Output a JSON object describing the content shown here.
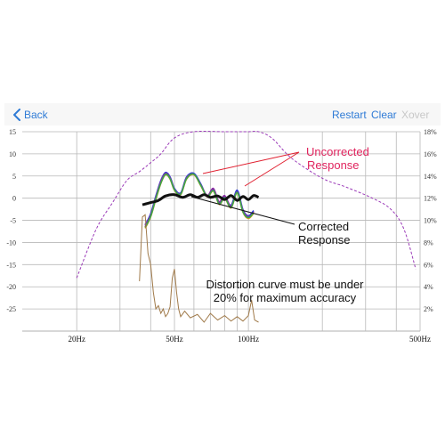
{
  "navbar": {
    "back_label": "Back",
    "restart_label": "Restart",
    "clear_label": "Clear",
    "xover_label": "Xover"
  },
  "annotations": {
    "uncorrected_line1": "Uncorrected",
    "uncorrected_line2": "Response",
    "corrected_line1": "Corrected",
    "corrected_line2": "Response",
    "distortion_line1": "Distortion curve must be under",
    "distortion_line2": "20% for maximum accuracy"
  },
  "colors": {
    "accent": "#2f7bd6",
    "uncorrected_label": "#e0245e",
    "target": "#9b3bb8",
    "distortion": "#a07a4a",
    "corrected": "#111111"
  },
  "chart_data": {
    "type": "line",
    "x_scale": "log",
    "xlim": [
      12,
      500
    ],
    "ylim_left": [
      -30,
      15
    ],
    "ylim_right": [
      0,
      18
    ],
    "y_ticks_left": [
      "15",
      "10",
      "5",
      "0",
      "-5",
      "-10",
      "-15",
      "-20",
      "-25"
    ],
    "y_ticks_left_values": [
      15,
      10,
      5,
      0,
      -5,
      -10,
      -15,
      -20,
      -25
    ],
    "y_ticks_right": [
      "18%",
      "16%",
      "14%",
      "12%",
      "10%",
      "8%",
      "6%",
      "4%",
      "2%"
    ],
    "y_ticks_right_values": [
      18,
      16,
      14,
      12,
      10,
      8,
      6,
      4,
      2
    ],
    "x_ticks": [
      "20Hz",
      "50Hz",
      "100Hz",
      "500Hz"
    ],
    "x_ticks_values": [
      20,
      50,
      100,
      500
    ],
    "grid_x": [
      20,
      30,
      40,
      50,
      60,
      70,
      80,
      90,
      100,
      200,
      300,
      400,
      500
    ],
    "grid": true,
    "series": [
      {
        "role": "target",
        "axis": "left",
        "style": "dashed",
        "color": "#9b3bb8",
        "x": [
          20,
          24,
          28,
          32,
          36,
          40,
          44,
          50,
          60,
          80,
          100,
          110,
          125,
          150,
          200,
          250,
          320,
          380,
          430,
          480
        ],
        "y": [
          -18,
          -7,
          -1,
          4,
          6,
          8,
          10,
          13.6,
          15,
          15,
          15,
          15,
          13.5,
          9,
          4.5,
          2.5,
          0,
          -2.5,
          -7,
          -16
        ]
      },
      {
        "role": "uncorrected-red",
        "axis": "left",
        "color": "#e02030",
        "x": [
          38,
          40,
          42,
          44,
          46,
          48,
          50,
          53,
          56,
          60,
          64,
          68,
          72,
          76,
          80,
          85,
          90,
          95,
          100,
          105
        ],
        "y": [
          -6.5,
          -4,
          0,
          3.5,
          5.5,
          4.5,
          2,
          1,
          4.5,
          5.5,
          3,
          0.5,
          2,
          -1,
          0.5,
          -2,
          1.5,
          -3,
          -4.5,
          -3
        ]
      },
      {
        "role": "uncorrected-blue",
        "axis": "left",
        "color": "#2a3ad8",
        "x": [
          38,
          40,
          42,
          44,
          46,
          48,
          50,
          53,
          56,
          60,
          64,
          68,
          72,
          76,
          80,
          85,
          90,
          95,
          100,
          105
        ],
        "y": [
          -6,
          -3.5,
          0.5,
          4,
          5.8,
          4.8,
          2.2,
          1.2,
          4.8,
          5.6,
          3.2,
          0.4,
          1.8,
          -1.2,
          0.2,
          -1.6,
          1.8,
          -2.6,
          -4,
          -2.8
        ]
      },
      {
        "role": "uncorrected-purple",
        "axis": "left",
        "color": "#8a2aa8",
        "x": [
          38,
          40,
          42,
          44,
          46,
          48,
          50,
          53,
          56,
          60,
          64,
          68,
          72,
          76,
          80,
          85,
          90,
          95,
          100,
          105
        ],
        "y": [
          -6.2,
          -3.8,
          0.2,
          3.8,
          5.6,
          4.6,
          2,
          1,
          4.6,
          5.4,
          3,
          0.6,
          2.2,
          -0.8,
          0.6,
          -1.8,
          1.4,
          -2.8,
          -4.2,
          -3.2
        ]
      },
      {
        "role": "uncorrected-orange",
        "axis": "left",
        "color": "#e89020",
        "x": [
          38,
          40,
          42,
          44,
          46,
          48,
          50,
          53,
          56,
          60,
          64,
          68,
          72,
          76,
          80,
          85,
          90,
          95,
          100,
          105
        ],
        "y": [
          -6.8,
          -4.2,
          -0.3,
          3.3,
          5.3,
          4.3,
          1.8,
          0.8,
          4.3,
          5.3,
          2.8,
          0.3,
          1.6,
          -1.4,
          0,
          -2.2,
          1.2,
          -3.2,
          -4.6,
          -3.4
        ]
      },
      {
        "role": "uncorrected-green",
        "axis": "left",
        "color": "#39a84a",
        "x": [
          38,
          40,
          42,
          44,
          46,
          48,
          50,
          53,
          56,
          60,
          64,
          68,
          72,
          76,
          80,
          85,
          90,
          95,
          100,
          105
        ],
        "y": [
          -6.6,
          -4.1,
          -0.1,
          3.4,
          5.4,
          4.4,
          1.9,
          0.9,
          4.4,
          5.4,
          2.9,
          0.4,
          1.7,
          -1.3,
          0.1,
          -2.1,
          1.3,
          -3.1,
          -4.4,
          -3.3
        ]
      },
      {
        "role": "corrected",
        "axis": "left",
        "color": "#111111",
        "x": [
          37,
          40,
          43,
          46,
          50,
          54,
          58,
          62,
          66,
          70,
          75,
          80,
          85,
          90,
          95,
          100,
          105,
          110
        ],
        "y": [
          -1.5,
          -1,
          -0.5,
          0.5,
          0.8,
          0.2,
          0.8,
          0.2,
          0.8,
          0.2,
          0.5,
          -0.3,
          0.6,
          -0.5,
          0.4,
          -0.3,
          0.6,
          0.2
        ]
      },
      {
        "role": "distortion",
        "axis": "right",
        "color": "#a07a4a",
        "x": [
          36,
          37,
          38,
          39,
          40,
          41,
          42,
          43,
          44,
          45,
          46,
          47,
          48,
          49,
          50,
          51,
          52,
          53,
          55,
          58,
          62,
          66,
          70,
          75,
          80,
          85,
          90,
          95,
          100,
          103,
          106,
          110
        ],
        "y": [
          4.5,
          10.3,
          10.5,
          7,
          6,
          3.5,
          2,
          2.3,
          1.6,
          2,
          1.3,
          1.6,
          2.2,
          4.8,
          5.6,
          3.5,
          2,
          1.3,
          1.8,
          1.2,
          1.5,
          0.8,
          1.6,
          1,
          1.4,
          0.9,
          1.3,
          0.9,
          1.4,
          2.8,
          1,
          0.8
        ]
      }
    ]
  }
}
